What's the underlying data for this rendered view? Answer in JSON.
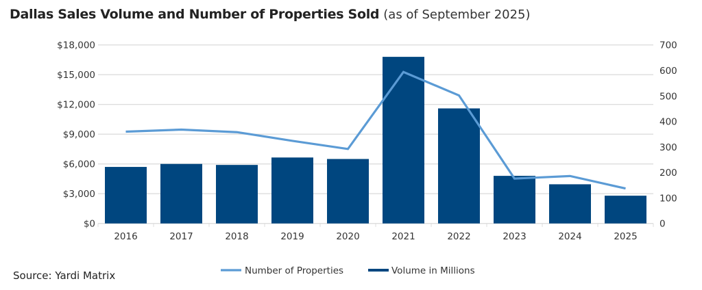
{
  "title": "Dallas Sales Volume and Number of Properties Sold",
  "subtitle": "(as of September 2025)",
  "source": "Source: Yardi Matrix",
  "colors": {
    "bars": "#00467f",
    "line": "#5b9bd5",
    "grid": "#dddddd"
  },
  "chart_data": {
    "type": "bar+line",
    "title": "Dallas Sales Volume and Number of Properties Sold",
    "subtitle": "(as of September 2025)",
    "categories": [
      "2016",
      "2017",
      "2018",
      "2019",
      "2020",
      "2021",
      "2022",
      "2023",
      "2024",
      "2025"
    ],
    "series": [
      {
        "name": "Volume in Millions",
        "type": "bar",
        "axis": "left",
        "values": [
          5700,
          6000,
          5900,
          6650,
          6500,
          16800,
          11600,
          4800,
          3950,
          2800
        ]
      },
      {
        "name": "Number of Properties",
        "type": "line",
        "axis": "right",
        "values": [
          360,
          368,
          358,
          324,
          292,
          594,
          502,
          176,
          186,
          137
        ]
      }
    ],
    "y_left": {
      "range": [
        0,
        18000
      ],
      "ticks": [
        "$0",
        "$3,000",
        "$6,000",
        "$9,000",
        "$12,000",
        "$15,000",
        "$18,000"
      ],
      "tick_values": [
        0,
        3000,
        6000,
        9000,
        12000,
        15000,
        18000
      ]
    },
    "y_right": {
      "range": [
        0,
        700
      ],
      "ticks": [
        "0",
        "100",
        "200",
        "300",
        "400",
        "500",
        "600",
        "700"
      ],
      "tick_values": [
        0,
        100,
        200,
        300,
        400,
        500,
        600,
        700
      ]
    },
    "grid": true,
    "legend": {
      "position": "bottom",
      "entries": [
        "Number of Properties",
        "Volume in Millions"
      ]
    }
  }
}
